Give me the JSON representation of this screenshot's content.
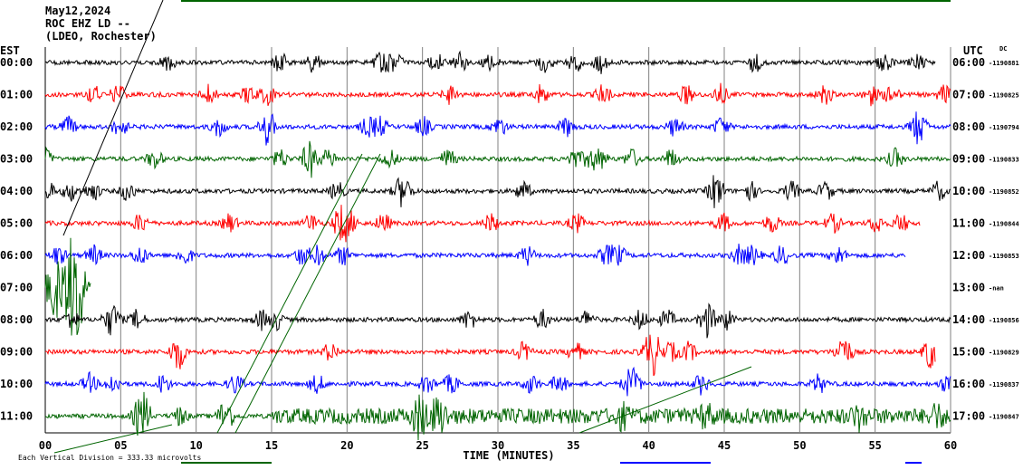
{
  "header": {
    "date": "May12,2024",
    "station": "ROC EHZ LD --",
    "network": "(LDEO, Rochester)",
    "left_tz": "EST",
    "right_tz": "UTC",
    "dc_label": "DC"
  },
  "footer": {
    "scale_note": "Each Vertical Division =  333.33 microvolts"
  },
  "chart_data": {
    "type": "line",
    "title": "",
    "xlabel": "TIME (MINUTES)",
    "x_ticks": [
      "00",
      "05",
      "10",
      "15",
      "20",
      "25",
      "30",
      "35",
      "40",
      "45",
      "50",
      "55",
      "60"
    ],
    "xlim": [
      0,
      60
    ],
    "grid": true,
    "rows": [
      {
        "est": "00:00",
        "utc": "06:00",
        "dc": "-1190881",
        "color": "#000000",
        "end": 59
      },
      {
        "est": "01:00",
        "utc": "07:00",
        "dc": "-1190825",
        "color": "#ff0000",
        "end": 60
      },
      {
        "est": "02:00",
        "utc": "08:00",
        "dc": "-1190794",
        "color": "#0000ff",
        "end": 60
      },
      {
        "est": "03:00",
        "utc": "09:00",
        "dc": "-1190833",
        "color": "#006400",
        "end": 60
      },
      {
        "est": "04:00",
        "utc": "10:00",
        "dc": "-1190852",
        "color": "#000000",
        "end": 60
      },
      {
        "est": "05:00",
        "utc": "11:00",
        "dc": "-1190844",
        "color": "#ff0000",
        "end": 58
      },
      {
        "est": "06:00",
        "utc": "12:00",
        "dc": "-1190853",
        "color": "#0000ff",
        "end": 57
      },
      {
        "est": "07:00",
        "utc": "13:00",
        "dc": "-nan",
        "color": "#006400",
        "end": 3
      },
      {
        "est": "08:00",
        "utc": "14:00",
        "dc": "-1190856",
        "color": "#000000",
        "end": 60
      },
      {
        "est": "09:00",
        "utc": "15:00",
        "dc": "-1190829",
        "color": "#ff0000",
        "end": 59
      },
      {
        "est": "10:00",
        "utc": "16:00",
        "dc": "-1190837",
        "color": "#0000ff",
        "end": 60
      },
      {
        "est": "11:00",
        "utc": "17:00",
        "dc": "-1190847",
        "color": "#006400",
        "end": 60
      }
    ]
  }
}
